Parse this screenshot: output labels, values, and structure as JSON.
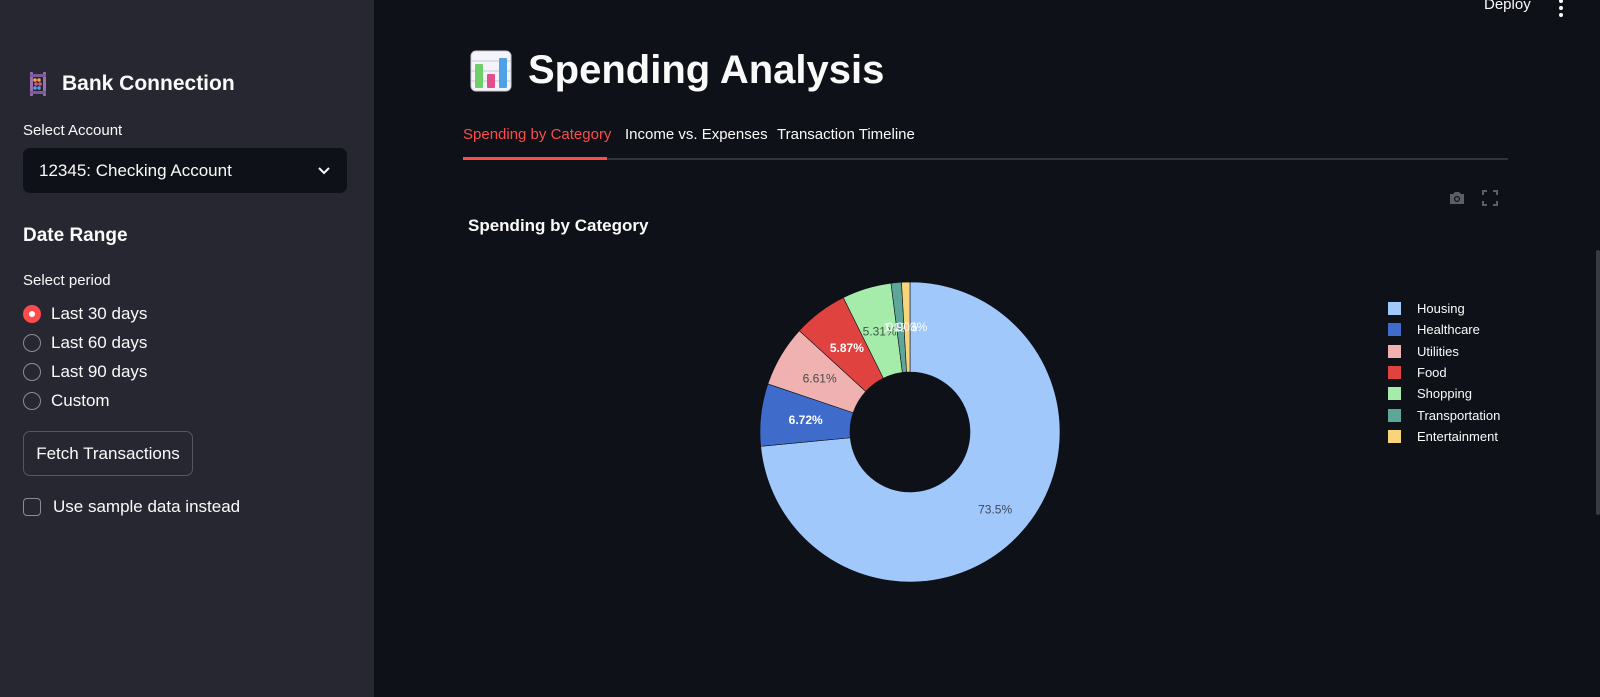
{
  "header": {
    "deploy_label": "Deploy",
    "menu_icon": "kebab-menu-icon"
  },
  "sidebar": {
    "title": "Bank Connection",
    "title_icon": "abacus-icon",
    "account_label": "Select Account",
    "account_value": "12345: Checking Account",
    "date_range_title": "Date Range",
    "period_label": "Select period",
    "periods": [
      "Last 30 days",
      "Last 60 days",
      "Last 90 days",
      "Custom"
    ],
    "selected_period": "Last 30 days",
    "fetch_button": "Fetch Transactions",
    "sample_checkbox_label": "Use sample data instead",
    "sample_checked": false,
    "accent_color": "#ff4b4b"
  },
  "main": {
    "title": "Spending Analysis",
    "title_icon": "bar-chart-icon",
    "tabs": [
      "Spending by Category",
      "Income vs. Expenses",
      "Transaction Timeline"
    ],
    "active_tab": "Spending by Category",
    "chart_toolbar": [
      "camera-icon",
      "fullscreen-icon"
    ]
  },
  "chart_data": {
    "type": "pie",
    "subtype": "donut",
    "title": "Spending by Category",
    "categories": [
      "Housing",
      "Healthcare",
      "Utilities",
      "Food",
      "Shopping",
      "Transportation",
      "Entertainment"
    ],
    "values": [
      73.5,
      6.72,
      6.61,
      5.87,
      5.31,
      1.12,
      0.903
    ],
    "labels": [
      "73.5%",
      "6.72%",
      "6.61%",
      "5.87%",
      "5.31%",
      "1.12%",
      "0.903%"
    ],
    "colors": [
      "#a0c8fa",
      "#3f6bcb",
      "#f0b1b1",
      "#e0433f",
      "#a5ecab",
      "#5ea59a",
      "#f8d47b"
    ],
    "legend_position": "right"
  }
}
